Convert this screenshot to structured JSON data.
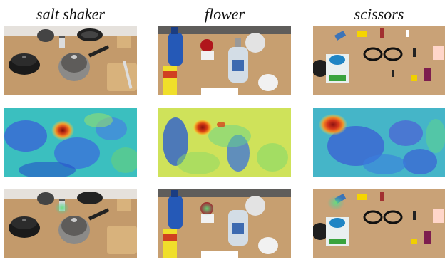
{
  "columns": [
    {
      "title": "salt shaker"
    },
    {
      "title": "flower"
    },
    {
      "title": "scissors"
    }
  ],
  "rows": [
    "input image",
    "heatmap",
    "localized result"
  ]
}
